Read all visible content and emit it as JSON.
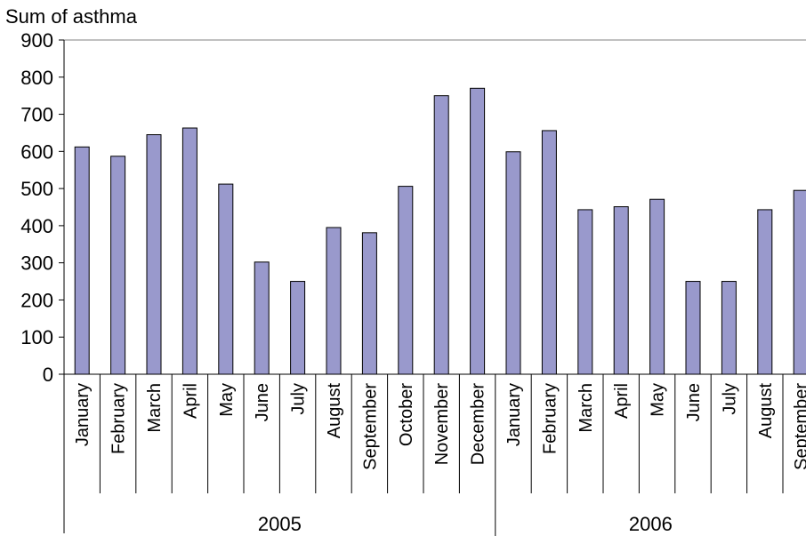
{
  "chart_data": {
    "type": "bar",
    "title": "Sum of asthma",
    "xlabel": "",
    "ylabel": "",
    "ylim": [
      0,
      900
    ],
    "yticks": [
      0,
      100,
      200,
      300,
      400,
      500,
      600,
      700,
      800,
      900
    ],
    "grid": false,
    "legend": "none",
    "bar_color": "#9999cc",
    "categories": [
      "January",
      "February",
      "March",
      "April",
      "May",
      "June",
      "July",
      "August",
      "September",
      "October",
      "November",
      "December",
      "January",
      "February",
      "March",
      "April",
      "May",
      "June",
      "July",
      "August",
      "September"
    ],
    "groups": [
      {
        "label": "2005",
        "count": 12
      },
      {
        "label": "2006",
        "count": 9
      }
    ],
    "values": [
      612,
      587,
      645,
      663,
      512,
      302,
      250,
      395,
      381,
      506,
      750,
      770,
      599,
      656,
      443,
      451,
      471,
      250,
      250,
      443,
      495
    ]
  }
}
